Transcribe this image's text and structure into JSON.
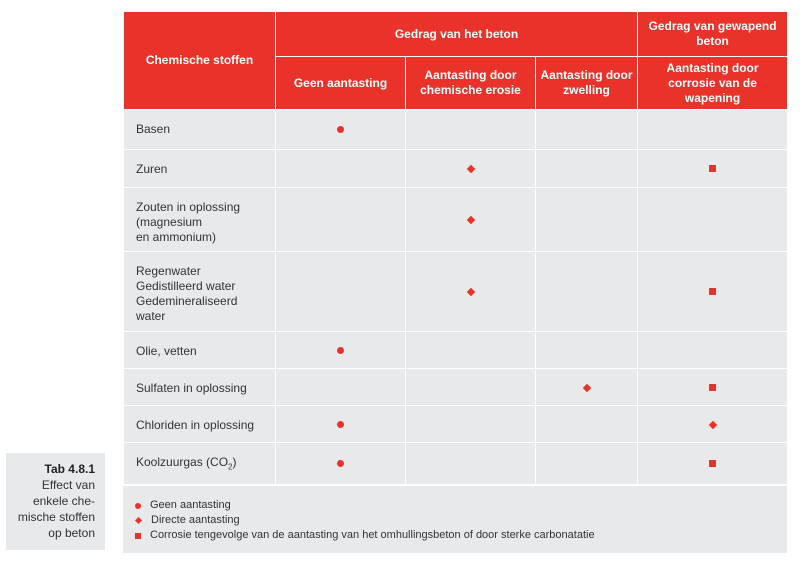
{
  "caption": {
    "title": "Tab 4.8.1",
    "lines": [
      "Effect van",
      "enkele che-",
      "mische stoffen",
      "op beton"
    ]
  },
  "header": {
    "col0": "Chemische stoffen",
    "group1": "Gedrag van het beton",
    "group2": "Gedrag van gewapend beton",
    "sub1": "Geen aantasting",
    "sub2": "Aantasting door chemische erosie",
    "sub3": "Aantasting door zwelling",
    "sub4": "Aantasting door corrosie van de wapening"
  },
  "rows": [
    {
      "lines": [
        "Basen"
      ],
      "marks": [
        "circle",
        "",
        "",
        ""
      ]
    },
    {
      "lines": [
        "Zuren"
      ],
      "marks": [
        "",
        "diamond",
        "",
        "square"
      ]
    },
    {
      "lines": [
        "Zouten in oplossing",
        "(magnesium",
        "en ammonium)"
      ],
      "marks": [
        "",
        "diamond",
        "",
        ""
      ]
    },
    {
      "lines": [
        "Regenwater",
        "Gedistilleerd water",
        "Gedemineraliseerd",
        "water"
      ],
      "marks": [
        "",
        "diamond",
        "",
        "square"
      ]
    },
    {
      "lines": [
        "Olie, vetten"
      ],
      "marks": [
        "circle",
        "",
        "",
        ""
      ]
    },
    {
      "lines": [
        "Sulfaten in oplossing"
      ],
      "marks": [
        "",
        "",
        "diamond",
        "square"
      ]
    },
    {
      "lines": [
        "Chloriden in oplossing"
      ],
      "marks": [
        "circle",
        "",
        "",
        "diamond"
      ]
    },
    {
      "lines": [
        "Koolzuurgas (CO",
        "2",
        ")"
      ],
      "subscript": true,
      "marks": [
        "circle",
        "",
        "",
        "square"
      ]
    }
  ],
  "legend": [
    {
      "symbol": "circle",
      "text": "Geen aantasting"
    },
    {
      "symbol": "diamond",
      "text": "Directe aantasting"
    },
    {
      "symbol": "square",
      "text": "Corrosie tengevolge van de aantasting van het omhullingsbeton of door sterke carbonatatie"
    }
  ],
  "colors": {
    "accent": "#e8322a",
    "cell": "#e8e9eb"
  }
}
